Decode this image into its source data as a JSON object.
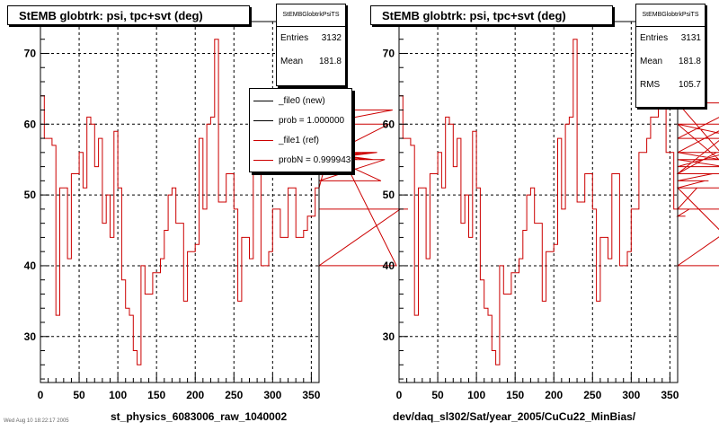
{
  "chart_data": [
    {
      "type": "line",
      "title": "StEMB globtrk: psi, tpc+svt (deg)",
      "xlabel": "st_physics_6083006_raw_1040002",
      "ylabel": "",
      "xlim": [
        0,
        360
      ],
      "ylim": [
        23.5,
        74.5
      ],
      "xticks": [
        0,
        50,
        100,
        150,
        200,
        250,
        300,
        350
      ],
      "yticks": [
        30,
        40,
        50,
        60,
        70
      ],
      "grid": true,
      "stats": {
        "name": "StEMBGlobtrkPsiTS",
        "entries_label": "Entries",
        "entries": "3132",
        "mean_label": "Mean",
        "mean": "181.8"
      },
      "legend": {
        "placement": "top-right",
        "entries": [
          {
            "label": "_file0 (new)",
            "color": "#000000"
          },
          {
            "label": "prob = 1.000000",
            "color": "#000000"
          },
          {
            "label": "_file1 (ref)",
            "color": "#cc0000"
          },
          {
            "label": "probN = 0.999943",
            "color": "#cc0000"
          }
        ]
      },
      "series": [
        {
          "color": "#cc0000",
          "bin_width": 5,
          "values": [
            64,
            58,
            58,
            57,
            33,
            51,
            51,
            41,
            53,
            53,
            56,
            51,
            61,
            60,
            54,
            58,
            46,
            50,
            44,
            59,
            51,
            38,
            34,
            33,
            28,
            26,
            40,
            36,
            36,
            39,
            39,
            41,
            45,
            50,
            51,
            46,
            46,
            35,
            42,
            42,
            43,
            58,
            48,
            60,
            61,
            72,
            49,
            49,
            53,
            53,
            48,
            35,
            44,
            44,
            41,
            53,
            53,
            40,
            40,
            42,
            48,
            48,
            44,
            44,
            51,
            51,
            44,
            44,
            45,
            47,
            47,
            51,
            51,
            53,
            53,
            56,
            56,
            56,
            57,
            56,
            55,
            56,
            55,
            56,
            55,
            56,
            55,
            56,
            52,
            55,
            60,
            62,
            40,
            48,
            48,
            48
          ]
        }
      ]
    },
    {
      "type": "line",
      "title": "StEMB globtrk: psi, tpc+svt (deg)",
      "xlabel": "dev/daq_sl302/Sat/year_2005/CuCu22_MinBias/",
      "ylabel": "",
      "xlim": [
        0,
        360
      ],
      "ylim": [
        23.5,
        74.5
      ],
      "xticks": [
        0,
        50,
        100,
        150,
        200,
        250,
        300,
        350
      ],
      "yticks": [
        30,
        40,
        50,
        60,
        70
      ],
      "grid": true,
      "stats": {
        "name": "StEMBGlobtrkPsiTS",
        "entries_label": "Entries",
        "entries": "3131",
        "mean_label": "Mean",
        "mean": "181.8",
        "rms_label": "RMS",
        "rms": "105.7"
      },
      "series": [
        {
          "color": "#cc0000",
          "bin_width": 5,
          "values": [
            64,
            58,
            58,
            57,
            33,
            51,
            51,
            41,
            53,
            53,
            56,
            51,
            61,
            60,
            54,
            58,
            46,
            50,
            44,
            59,
            51,
            38,
            34,
            33,
            28,
            26,
            40,
            36,
            36,
            39,
            39,
            41,
            45,
            50,
            51,
            46,
            46,
            35,
            42,
            42,
            43,
            58,
            48,
            60,
            61,
            72,
            49,
            49,
            53,
            53,
            48,
            35,
            44,
            44,
            41,
            53,
            53,
            40,
            40,
            42,
            48,
            48,
            56,
            56,
            58,
            61,
            61,
            64,
            64,
            56,
            56,
            48,
            47,
            47,
            47,
            48,
            48,
            51,
            51,
            52,
            52,
            53,
            56,
            55,
            54,
            56,
            60,
            53,
            60,
            58,
            63,
            51,
            40,
            48,
            48,
            48
          ]
        }
      ]
    }
  ],
  "footer": "Wed Aug 10 18:22:17 2005"
}
